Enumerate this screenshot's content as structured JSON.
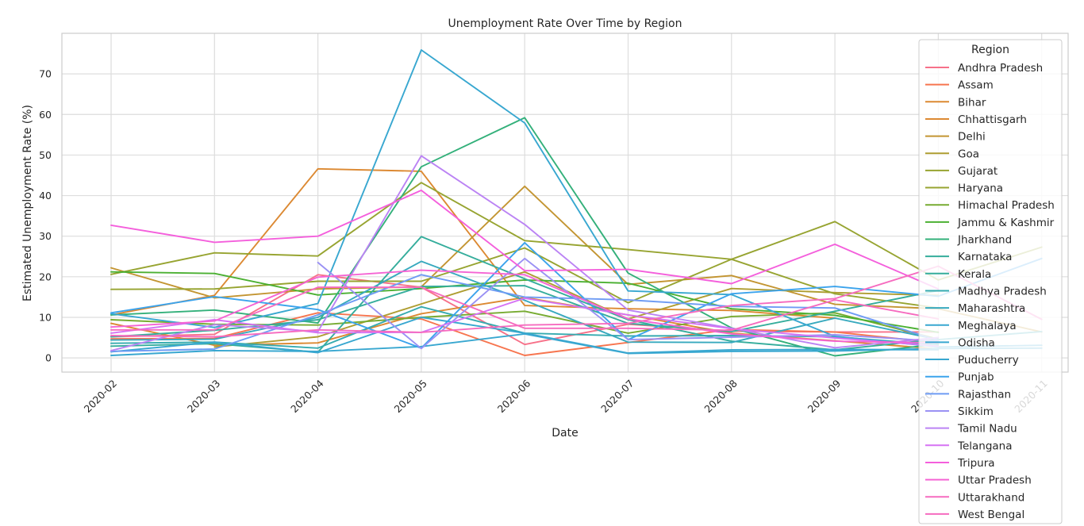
{
  "chart_data": {
    "type": "line",
    "title": "Unemployment Rate Over Time by Region",
    "xlabel": "Date",
    "ylabel": "Estimated Unemployment Rate (%)",
    "ylim": [
      -3.5,
      80
    ],
    "yticks": [
      0,
      10,
      20,
      30,
      40,
      50,
      60,
      70
    ],
    "grid": true,
    "legend_title": "Region",
    "legend_position": "right",
    "x": [
      "2020-02",
      "2020-03",
      "2020-04",
      "2020-05",
      "2020-06",
      "2020-07",
      "2020-08",
      "2020-09",
      "2020-10",
      "2020-11"
    ],
    "series": [
      {
        "name": "Andhra Pradesh",
        "color": "#f77189",
        "values": [
          5.2,
          5.8,
          20.5,
          17.4,
          3.3,
          8.3,
          6.6,
          6.4,
          6.4,
          null
        ]
      },
      {
        "name": "Assam",
        "color": "#f7754f",
        "values": [
          4.7,
          4.8,
          11.1,
          9.6,
          0.6,
          3.8,
          7.0,
          6.4,
          3.7,
          null
        ]
      },
      {
        "name": "Bihar",
        "color": "#dc8932",
        "values": [
          10.6,
          15.4,
          46.6,
          46.0,
          12.9,
          12.1,
          11.7,
          9.8,
          null,
          null
        ]
      },
      {
        "name": "Chhattisgarh",
        "color": "#dc8932",
        "values": [
          8.5,
          3.1,
          3.7,
          10.9,
          14.9,
          10.6,
          6.1,
          4.2,
          2.2,
          null
        ]
      },
      {
        "name": "Delhi",
        "color": "#c39532",
        "values": [
          22.2,
          14.8,
          17.0,
          17.5,
          42.3,
          18.1,
          20.3,
          13.2,
          12.1,
          6.4
        ]
      },
      {
        "name": "Goa",
        "color": "#ae9d31",
        "values": [
          null,
          2.7,
          5.2,
          13.3,
          21.2,
          9.6,
          17.1,
          16.1,
          15.4,
          null
        ]
      },
      {
        "name": "Gujarat",
        "color": "#97a431",
        "values": [
          20.6,
          25.9,
          25.1,
          43.2,
          28.9,
          26.7,
          24.3,
          33.6,
          19.2,
          27.3
        ]
      },
      {
        "name": "Haryana",
        "color": "#97a431",
        "values": [
          16.9,
          17.0,
          18.9,
          18.9,
          27.1,
          13.6,
          24.3,
          15.8,
          12.3,
          null
        ]
      },
      {
        "name": "Himachal Pradesh",
        "color": "#77ab31",
        "values": [
          9.4,
          8.3,
          8.1,
          10.0,
          11.5,
          6.1,
          10.2,
          11.1,
          4.6,
          null
        ]
      },
      {
        "name": "Jammu & Kashmir",
        "color": "#4bb032",
        "values": [
          21.2,
          20.8,
          15.5,
          17.1,
          19.2,
          18.4,
          12.1,
          10.5,
          6.3,
          null
        ]
      },
      {
        "name": "Jharkhand",
        "color": "#33b07a",
        "values": [
          10.6,
          11.8,
          8.6,
          47.1,
          59.2,
          20.9,
          7.4,
          0.5,
          3.4,
          null
        ]
      },
      {
        "name": "Karnataka",
        "color": "#35ad9c",
        "values": [
          2.9,
          3.5,
          1.4,
          29.9,
          19.5,
          9.4,
          4.1,
          2.0,
          4.6,
          null
        ]
      },
      {
        "name": "Kerala",
        "color": "#35ad9c",
        "values": [
          5.2,
          6.8,
          9.4,
          17.6,
          17.8,
          8.5,
          6.5,
          11.5,
          16.6,
          null
        ]
      },
      {
        "name": "Madhya Pradesh",
        "color": "#36abb0",
        "values": [
          3.6,
          3.9,
          2.4,
          12.6,
          6.1,
          5.4,
          5.5,
          5.2,
          3.2,
          null
        ]
      },
      {
        "name": "Maharashtra",
        "color": "#37a9be",
        "values": [
          4.4,
          4.6,
          10.0,
          23.8,
          14.2,
          3.9,
          3.8,
          9.8,
          4.5,
          6.5
        ]
      },
      {
        "name": "Meghalaya",
        "color": "#38a7d0",
        "values": [
          1.5,
          3.9,
          1.3,
          10.0,
          6.1,
          1.2,
          2.0,
          2.1,
          2.0,
          null
        ]
      },
      {
        "name": "Odisha",
        "color": "#38a7d0",
        "values": [
          10.9,
          7.5,
          13.4,
          75.9,
          57.9,
          16.5,
          15.6,
          5.3,
          2.7,
          3.1
        ]
      },
      {
        "name": "Puducherry",
        "color": "#38a7d0",
        "values": [
          0.6,
          1.8,
          1.6,
          2.8,
          5.9,
          1.1,
          1.6,
          1.7,
          2.3,
          2.4
        ]
      },
      {
        "name": "Punjab",
        "color": "#3ba3ec",
        "values": [
          11.1,
          15.1,
          11.9,
          2.4,
          28.4,
          4.5,
          15.8,
          17.6,
          15.2,
          24.5
        ]
      },
      {
        "name": "Rajasthan",
        "color": "#6e9bf4",
        "values": [
          1.6,
          2.2,
          10.6,
          20.5,
          15.0,
          14.3,
          12.7,
          12.3,
          4.3,
          null
        ]
      },
      {
        "name": "Sikkim",
        "color": "#9a91f4",
        "values": [
          null,
          null,
          23.5,
          2.3,
          24.5,
          4.5,
          5.1,
          5.7,
          4.1,
          null
        ]
      },
      {
        "name": "Tamil Nadu",
        "color": "#bb83f4",
        "values": [
          1.8,
          8.2,
          6.5,
          49.8,
          32.9,
          11.8,
          7.3,
          2.5,
          5.0,
          null
        ]
      },
      {
        "name": "Telangana",
        "color": "#d673f4",
        "values": [
          6.1,
          9.4,
          6.2,
          6.3,
          14.7,
          10.6,
          7.2,
          4.9,
          2.9,
          null
        ]
      },
      {
        "name": "Tripura",
        "color": "#f45fdc",
        "values": [
          32.7,
          28.5,
          30.0,
          41.3,
          21.5,
          21.8,
          18.3,
          28.0,
          17.0,
          null
        ]
      },
      {
        "name": "Uttar Pradesh",
        "color": "#f564d4",
        "values": [
          7.6,
          9.1,
          19.9,
          21.6,
          20.5,
          9.6,
          5.9,
          4.1,
          3.7,
          null
        ]
      },
      {
        "name": "Uttarakhand",
        "color": "#f66bbf",
        "values": [
          5.5,
          5.2,
          6.9,
          6.3,
          8.1,
          8.5,
          12.9,
          14.6,
          22.6,
          9.5
        ]
      },
      {
        "name": "West Bengal",
        "color": "#f66bbf",
        "values": [
          6.9,
          6.9,
          17.4,
          17.4,
          7.3,
          7.3,
          6.8,
          14.3,
          9.6,
          null
        ]
      }
    ]
  }
}
